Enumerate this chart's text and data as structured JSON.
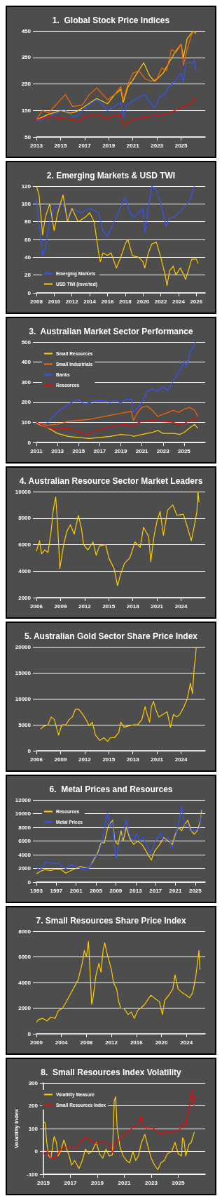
{
  "chart_data": [
    {
      "type": "line",
      "title": "1.  Global Stock Price Indices",
      "xlim": [
        2013,
        2027
      ],
      "xticks": [
        2013,
        2015,
        2017,
        2019,
        2021,
        2023,
        2025
      ],
      "ylim": [
        50,
        450
      ],
      "yticks": [
        50,
        150,
        250,
        350,
        450
      ],
      "grid": "y",
      "legend": false,
      "series": [
        {
          "color": "#3355ff",
          "x": [
            2013,
            2014,
            2015.3,
            2015.8,
            2016.2,
            2017,
            2018,
            2018.9,
            2019.5,
            2020,
            2020.2,
            2020.5,
            2021,
            2021.5,
            2022,
            2022.4,
            2022.8,
            2023.2,
            2023.6,
            2024,
            2024.5,
            2025,
            2025.2,
            2025.4,
            2026,
            2026.1,
            2026.25
          ],
          "values": [
            110,
            125,
            155,
            135,
            125,
            155,
            190,
            150,
            165,
            180,
            125,
            170,
            185,
            200,
            210,
            180,
            160,
            200,
            210,
            240,
            260,
            290,
            260,
            330,
            330,
            340,
            300
          ]
        },
        {
          "color": "#ffcc00",
          "x": [
            2013,
            2014,
            2015,
            2015.8,
            2016.3,
            2017,
            2018,
            2018.9,
            2019.5,
            2020,
            2020.2,
            2020.6,
            2021,
            2021.9,
            2022.4,
            2022.8,
            2023.5,
            2024,
            2024.5,
            2025,
            2025.2,
            2025.5,
            2026,
            2026.25
          ],
          "values": [
            115,
            135,
            150,
            140,
            145,
            165,
            195,
            175,
            210,
            230,
            180,
            240,
            265,
            330,
            280,
            260,
            290,
            330,
            370,
            400,
            350,
            420,
            450,
            440
          ]
        },
        {
          "color": "#ff6600",
          "x": [
            2013,
            2013.5,
            2014,
            2015.4,
            2016,
            2016.8,
            2017.4,
            2018,
            2018.9,
            2019.5,
            2020,
            2020.2,
            2020.6,
            2021,
            2021.5,
            2022,
            2022.5,
            2023,
            2023.4,
            2023.8,
            2024.2,
            2024.6,
            2025,
            2025.2,
            2025.5,
            2025.9,
            2026.1
          ],
          "values": [
            115,
            150,
            140,
            210,
            165,
            170,
            210,
            235,
            190,
            210,
            240,
            190,
            250,
            290,
            300,
            270,
            260,
            270,
            310,
            300,
            380,
            370,
            400,
            320,
            380,
            440,
            450
          ]
        },
        {
          "color": "#ff0000",
          "x": [
            2013,
            2014,
            2015,
            2016,
            2016.5,
            2017,
            2018,
            2018.9,
            2019.5,
            2020,
            2020.2,
            2020.6,
            2021,
            2022,
            2023,
            2024,
            2024.5,
            2025,
            2025.4,
            2026,
            2026.15,
            2026.25
          ],
          "values": [
            115,
            125,
            120,
            115,
            110,
            125,
            135,
            120,
            130,
            130,
            95,
            105,
            115,
            125,
            130,
            140,
            150,
            160,
            165,
            185,
            195,
            185
          ]
        }
      ]
    },
    {
      "type": "line",
      "title": "2. Emerging Markets & USD TWI",
      "xlim": [
        2008,
        2027
      ],
      "xticks": [
        2008,
        2010,
        2012,
        2014,
        2016,
        2018,
        2020,
        2022,
        2024,
        2026
      ],
      "ylim": [
        0,
        120
      ],
      "yticks": [
        0,
        20,
        40,
        60,
        80,
        100,
        120
      ],
      "grid": "y",
      "legend": "bottom left",
      "series": [
        {
          "name": "Emerging Markets",
          "color": "#3355ff",
          "x": [
            2008,
            2008.7,
            2009,
            2009.5,
            2010,
            2011,
            2011.5,
            2012,
            2013,
            2014,
            2015,
            2015.5,
            2016,
            2016.5,
            2017,
            2018,
            2018.5,
            2019,
            2020,
            2020.2,
            2020.6,
            2021,
            2021.5,
            2022,
            2022.6,
            2023,
            2023.5,
            2024,
            2024.5,
            2025,
            2025.3,
            2025.8
          ],
          "values": [
            105,
            42,
            50,
            80,
            95,
            100,
            85,
            95,
            90,
            95,
            90,
            70,
            63,
            75,
            85,
            108,
            90,
            85,
            95,
            68,
            95,
            120,
            115,
            100,
            75,
            85,
            85,
            90,
            95,
            100,
            105,
            120
          ]
        },
        {
          "name": "USD TWI (inverted)",
          "color": "#ffcc00",
          "x": [
            2008,
            2008.3,
            2008.7,
            2009,
            2009.5,
            2010,
            2010.4,
            2011,
            2011.5,
            2012,
            2012.7,
            2013.5,
            2014,
            2014.5,
            2015,
            2015.2,
            2015.5,
            2016,
            2016.4,
            2017,
            2017.5,
            2018,
            2018.3,
            2018.8,
            2019.5,
            2020,
            2020.2,
            2020.6,
            2021,
            2021.5,
            2022,
            2022.5,
            2022.7,
            2023,
            2023.4,
            2023.7,
            2024.2,
            2024.5,
            2024.8,
            2025.1,
            2025.5,
            2026,
            2026.2
          ],
          "values": [
            120,
            110,
            65,
            85,
            100,
            70,
            90,
            110,
            80,
            95,
            80,
            85,
            90,
            80,
            45,
            35,
            45,
            42,
            45,
            28,
            40,
            55,
            60,
            42,
            40,
            35,
            28,
            45,
            55,
            57,
            40,
            20,
            8,
            25,
            30,
            20,
            28,
            22,
            15,
            25,
            38,
            38,
            33
          ]
        }
      ]
    },
    {
      "type": "line",
      "title": "3.  Australian Market Sector Performance",
      "xlim": [
        2011,
        2027
      ],
      "xticks": [
        2011,
        2013,
        2015,
        2017,
        2019,
        2021,
        2023,
        2025
      ],
      "ylim": [
        0,
        500
      ],
      "yticks": [
        0,
        100,
        200,
        300,
        400,
        500
      ],
      "grid": "y",
      "legend": "top left",
      "series": [
        {
          "name": "Small Resources",
          "color": "#ffcc00",
          "x": [
            2011,
            2011.5,
            2012,
            2013,
            2014,
            2015,
            2016,
            2017,
            2018,
            2019,
            2020,
            2020.2,
            2021,
            2022,
            2022.5,
            2023,
            2024,
            2024.6,
            2025,
            2025.6,
            2026,
            2026.3
          ],
          "values": [
            95,
            85,
            75,
            45,
            30,
            25,
            20,
            25,
            30,
            40,
            35,
            30,
            40,
            50,
            60,
            45,
            45,
            40,
            50,
            75,
            90,
            70
          ]
        },
        {
          "name": "Small Industrials",
          "color": "#ff6600",
          "x": [
            2011,
            2012,
            2013,
            2014,
            2015,
            2016,
            2017,
            2018,
            2019,
            2020,
            2020.2,
            2020.6,
            2021,
            2021.5,
            2022,
            2022.5,
            2023,
            2023.5,
            2024,
            2024.5,
            2025,
            2025.5,
            2026,
            2026.3
          ],
          "values": [
            100,
            85,
            90,
            105,
            110,
            115,
            125,
            135,
            145,
            155,
            110,
            150,
            175,
            180,
            160,
            130,
            140,
            150,
            160,
            150,
            165,
            175,
            160,
            130
          ]
        },
        {
          "name": "Banks",
          "color": "#3355ff",
          "x": [
            2011,
            2011.5,
            2012,
            2013,
            2014,
            2015,
            2015.5,
            2016.5,
            2017,
            2018,
            2018.5,
            2019,
            2019.5,
            2020,
            2020.2,
            2020.5,
            2021,
            2021.5,
            2022,
            2022.5,
            2023,
            2023.5,
            2023.9,
            2024.5,
            2025,
            2025.2,
            2025.6,
            2026.1
          ],
          "values": [
            100,
            90,
            95,
            150,
            190,
            215,
            190,
            205,
            210,
            200,
            210,
            195,
            215,
            215,
            150,
            165,
            200,
            255,
            265,
            255,
            275,
            260,
            300,
            350,
            400,
            380,
            450,
            500
          ]
        },
        {
          "name": "Resources",
          "color": "#ff0000",
          "x": [
            2011,
            2012,
            2013,
            2014,
            2015,
            2015.8,
            2016.5,
            2017.5,
            2018.5,
            2019.5,
            2020.2,
            2020.5,
            2021,
            2022,
            2023,
            2024,
            2024.6,
            2025,
            2025.6,
            2026,
            2026.3
          ],
          "values": [
            100,
            75,
            65,
            70,
            55,
            40,
            55,
            70,
            85,
            90,
            80,
            95,
            105,
            110,
            105,
            100,
            85,
            95,
            110,
            120,
            110
          ]
        }
      ]
    },
    {
      "type": "line",
      "title": "4. Australian Resource Sector Market Leaders",
      "xlim": [
        2006,
        2027
      ],
      "xticks": [
        2006,
        2009,
        2012,
        2015,
        2018,
        2021,
        2024
      ],
      "ylim": [
        2000,
        10000
      ],
      "yticks": [
        2000,
        4000,
        6000,
        8000,
        10000
      ],
      "grid": "y",
      "legend": false,
      "series": [
        {
          "color": "#ffcc00",
          "x": [
            2006,
            2006.39,
            2006.65,
            2007.04,
            2007.44,
            2007.83,
            2008.09,
            2008.4,
            2008.61,
            2008.92,
            2009.39,
            2009.79,
            2010.23,
            2010.7,
            2011.22,
            2011.61,
            2011.87,
            2012.4,
            2013.05,
            2013.44,
            2013.83,
            2014.62,
            2015.01,
            2015.66,
            2016.1,
            2016.44,
            2016.97,
            2017.62,
            2018.27,
            2018.92,
            2019.32,
            2019.97,
            2020.23,
            2020.62,
            2021.01,
            2021.4,
            2021.8,
            2022.32,
            2022.97,
            2023.49,
            2024.28,
            2024.8,
            2025.27,
            2025.58,
            2025.97,
            2026.1,
            2026.23
          ],
          "values": [
            5500,
            6300,
            5300,
            5600,
            5400,
            7000,
            8600,
            9600,
            7800,
            4200,
            6000,
            7000,
            7500,
            6800,
            8200,
            7200,
            6000,
            5600,
            6200,
            5200,
            5900,
            6000,
            5000,
            4200,
            2900,
            3700,
            4600,
            5000,
            6200,
            5800,
            7300,
            6600,
            4700,
            6600,
            7800,
            8500,
            6700,
            8600,
            9000,
            8200,
            8300,
            7300,
            6300,
            7200,
            8500,
            10000,
            9200
          ]
        }
      ]
    },
    {
      "type": "line",
      "title": "5. Australian Gold Sector Share Price Index",
      "xlim": [
        2006,
        2027
      ],
      "xticks": [
        2006,
        2009,
        2012,
        2015,
        2018,
        2021,
        2024
      ],
      "ylim": [
        0,
        20000
      ],
      "yticks": [
        0,
        5000,
        10000,
        15000,
        20000
      ],
      "grid": "y",
      "legend": false,
      "series": [
        {
          "color": "#ffcc00",
          "x": [
            2006.52,
            2006.92,
            2007.44,
            2007.84,
            2008.23,
            2008.76,
            2009.15,
            2009.67,
            2010.07,
            2010.46,
            2010.86,
            2011.25,
            2011.77,
            2012.17,
            2012.56,
            2012.96,
            2013.35,
            2013.87,
            2014.4,
            2014.85,
            2015.19,
            2015.71,
            2016.24,
            2016.5,
            2016.89,
            2017.55,
            2018.07,
            2018.6,
            2019.12,
            2019.52,
            2019.78,
            2020.09,
            2020.31,
            2020.57,
            2020.83,
            2021.22,
            2021.75,
            2022.27,
            2022.67,
            2023.06,
            2023.45,
            2023.85,
            2024.37,
            2024.77,
            2025.16,
            2025.42,
            2025.63,
            2025.76,
            2025.89
          ],
          "values": [
            4200,
            4700,
            5000,
            6500,
            6000,
            3000,
            5000,
            5000,
            6000,
            6500,
            8000,
            8000,
            7000,
            6000,
            4800,
            5500,
            3000,
            2000,
            2500,
            1800,
            2500,
            2500,
            3500,
            5500,
            4500,
            4800,
            5000,
            5000,
            6000,
            8500,
            7000,
            5500,
            8500,
            9500,
            8000,
            6500,
            7000,
            7500,
            4500,
            7000,
            6500,
            7000,
            8500,
            10000,
            13000,
            11000,
            16000,
            17500,
            20000
          ]
        }
      ]
    },
    {
      "type": "line",
      "title": "6.  Metal Prices and Resources",
      "xlim": [
        1993,
        2027
      ],
      "xticks": [
        1993,
        1997,
        2001,
        2005,
        2009,
        2013,
        2017,
        2021,
        2025
      ],
      "ylim": [
        0,
        12000
      ],
      "yticks": [
        0,
        2000,
        4000,
        6000,
        8000,
        10000,
        12000
      ],
      "grid": "y",
      "legend": "top left",
      "series": [
        {
          "name": "Resources",
          "color": "#ffcc00",
          "x": [
            1993,
            1993.84,
            1994.68,
            1995.95,
            1997,
            1998.05,
            1998.89,
            1999.95,
            2001,
            2001.84,
            2002.68,
            2003.53,
            2004.37,
            2005.21,
            2006.05,
            2006.68,
            2007.32,
            2007.74,
            2008.37,
            2008.79,
            2009.42,
            2010.05,
            2010.47,
            2011.11,
            2011.74,
            2012.58,
            2013.42,
            2014.26,
            2015.11,
            2016.16,
            2016.79,
            2017.84,
            2018.68,
            2019.53,
            2020.37,
            2021,
            2021.63,
            2022.26,
            2022.89,
            2023.53,
            2024.16,
            2024.79,
            2025.42,
            2026.05,
            2026.26
          ],
          "values": [
            1200,
            1600,
            1800,
            1700,
            1900,
            1800,
            1300,
            1700,
            2000,
            2300,
            2100,
            2000,
            3000,
            4000,
            5800,
            5700,
            7800,
            8500,
            9000,
            6000,
            5500,
            7500,
            6000,
            8000,
            6500,
            5500,
            6000,
            5500,
            4500,
            3200,
            4500,
            5500,
            6500,
            6000,
            5500,
            7000,
            8000,
            7500,
            8500,
            9000,
            7500,
            7000,
            7500,
            9000,
            10500
          ]
        },
        {
          "name": "Metal Prices",
          "color": "#3355ff",
          "x": [
            1993,
            1993.63,
            1994.47,
            1994.89,
            1995.95,
            1996.79,
            1997.42,
            1998.05,
            1998.89,
            1999.95,
            2001,
            2001.84,
            2002.68,
            2003.53,
            2003.95,
            2004.37,
            2005.42,
            2006.05,
            2006.68,
            2007.32,
            2007.95,
            2008.37,
            2008.79,
            2009.08,
            2009.63,
            2010.47,
            2011.11,
            2011.74,
            2012.37,
            2013.21,
            2013.84,
            2014.47,
            2015.11,
            2015.95,
            2017,
            2018.05,
            2018.68,
            2019.53,
            2020.37,
            2021,
            2021.63,
            2022.26,
            2022.89,
            2023.53,
            2023.95,
            2024.79,
            2025.84,
            2026.26
          ],
          "values": [
            2200,
            1800,
            2300,
            3000,
            2800,
            2700,
            2800,
            2300,
            2000,
            2500,
            2300,
            2000,
            2000,
            2000,
            2500,
            3500,
            4000,
            5500,
            7500,
            10000,
            8000,
            8800,
            5000,
            3500,
            5500,
            7000,
            9000,
            7000,
            6000,
            7000,
            6000,
            6500,
            5500,
            4200,
            6000,
            7200,
            6000,
            6500,
            5000,
            6500,
            8500,
            11000,
            8000,
            8500,
            7500,
            7500,
            7800,
            10000
          ]
        }
      ]
    },
    {
      "type": "line",
      "title": "7. Small Resources Share Price Index",
      "xlim": [
        2000,
        2027
      ],
      "xticks": [
        2000,
        2004,
        2008,
        2012,
        2016,
        2020,
        2024
      ],
      "ylim": [
        0,
        8000
      ],
      "yticks": [
        0,
        2000,
        4000,
        6000,
        8000
      ],
      "grid": "y",
      "legend": false,
      "series": [
        {
          "color": "#ffcc00",
          "x": [
            2000,
            2000.33,
            2001,
            2001.67,
            2002.33,
            2003,
            2003.5,
            2004.17,
            2004.67,
            2005.33,
            2006,
            2006.67,
            2007.33,
            2007.67,
            2008,
            2008.33,
            2008.67,
            2008.83,
            2009.07,
            2009.5,
            2010,
            2010.33,
            2010.67,
            2010.93,
            2011.33,
            2012,
            2012.33,
            2012.83,
            2013.17,
            2013.5,
            2014,
            2014.67,
            2015.17,
            2015.67,
            2016.17,
            2016.67,
            2017.33,
            2018,
            2018.33,
            2018.83,
            2019.67,
            2020.17,
            2020.5,
            2021.17,
            2021.83,
            2022.17,
            2022.67,
            2023.33,
            2024,
            2024.5,
            2025,
            2025.5,
            2025.83,
            2026,
            2026.17
          ],
          "values": [
            900,
            1100,
            1200,
            1000,
            1300,
            1200,
            1800,
            2000,
            2400,
            3000,
            3600,
            4200,
            5500,
            6500,
            6000,
            7200,
            4000,
            2300,
            2800,
            4500,
            5500,
            4800,
            6500,
            7100,
            6200,
            5000,
            4000,
            3500,
            2500,
            2000,
            2000,
            1500,
            1700,
            1200,
            1800,
            2000,
            2300,
            2800,
            3000,
            2800,
            2500,
            1500,
            2600,
            3000,
            3500,
            4600,
            3500,
            3200,
            3000,
            2800,
            3200,
            4500,
            5800,
            6500,
            5000
          ]
        }
      ]
    },
    {
      "type": "line",
      "title": "8.  Small Resources Index Volatility",
      "ylabel": "Volatility Index",
      "xlim": [
        2015,
        2027
      ],
      "xticks": [
        2015,
        2017,
        2019,
        2021,
        2023,
        2025
      ],
      "ylim": [
        -100,
        300
      ],
      "yticks": [
        -100,
        0,
        100,
        200,
        300
      ],
      "grid": "y",
      "legend": "top left",
      "series": [
        {
          "name": "Volatility Measure",
          "color": "#ffcc00",
          "x": [
            2015,
            2015.13,
            2015.24,
            2015.4,
            2015.56,
            2015.67,
            2015.8,
            2015.96,
            2016.09,
            2016.28,
            2016.52,
            2016.73,
            2016.92,
            2017.08,
            2017.32,
            2017.64,
            2017.88,
            2018.12,
            2018.36,
            2018.6,
            2018.92,
            2019.16,
            2019.4,
            2019.64,
            2019.88,
            2020.12,
            2020.25,
            2020.36,
            2020.47,
            2020.68,
            2020.92,
            2021.16,
            2021.4,
            2021.64,
            2021.85,
            2022.04,
            2022.28,
            2022.52,
            2022.76,
            2023,
            2023.24,
            2023.48,
            2023.72,
            2023.96,
            2024.2,
            2024.52,
            2024.76,
            2025,
            2025.24,
            2025.32,
            2025.43,
            2025.56,
            2025.8,
            2025.96,
            2026.07,
            2026.2
          ],
          "values": [
            130,
            125,
            40,
            -20,
            -30,
            20,
            65,
            40,
            -20,
            0,
            50,
            10,
            -20,
            -60,
            -40,
            -75,
            -40,
            10,
            -10,
            0,
            40,
            -10,
            -30,
            10,
            -20,
            -15,
            220,
            240,
            100,
            20,
            -20,
            -40,
            -50,
            0,
            -40,
            -20,
            40,
            75,
            20,
            -30,
            -60,
            -80,
            -50,
            -40,
            -10,
            0,
            40,
            -10,
            -20,
            60,
            50,
            -20,
            30,
            40,
            60,
            85
          ]
        },
        {
          "name": "Small Resources Index",
          "color": "#ff0000",
          "x": [
            2015,
            2015.32,
            2015.56,
            2015.96,
            2016.2,
            2016.52,
            2016.76,
            2017.08,
            2017.4,
            2017.72,
            2017.96,
            2018.28,
            2018.6,
            2018.92,
            2019.24,
            2019.56,
            2019.88,
            2020.12,
            2020.36,
            2020.6,
            2020.92,
            2021.24,
            2021.56,
            2021.88,
            2022.12,
            2022.25,
            2022.36,
            2022.6,
            2022.84,
            2023.16,
            2023.48,
            2023.8,
            2024.12,
            2024.44,
            2024.76,
            2025.08,
            2025.4,
            2025.56,
            2025.72,
            2025.88,
            2026.01,
            2026.12,
            2026.2
          ],
          "values": [
            -10,
            0,
            -30,
            -25,
            5,
            15,
            20,
            20,
            10,
            35,
            55,
            60,
            45,
            35,
            45,
            40,
            35,
            -5,
            40,
            50,
            70,
            85,
            100,
            110,
            130,
            155,
            120,
            100,
            105,
            100,
            85,
            75,
            90,
            80,
            90,
            95,
            120,
            110,
            170,
            210,
            270,
            250,
            180
          ]
        }
      ]
    }
  ]
}
